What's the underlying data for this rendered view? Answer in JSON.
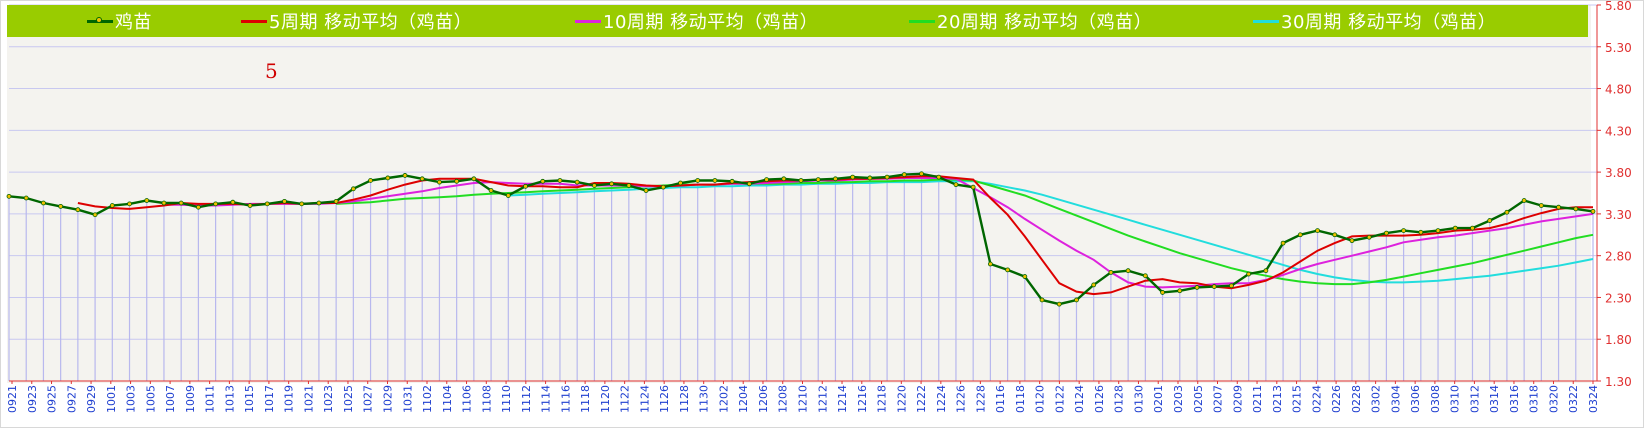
{
  "chart_data": {
    "type": "line",
    "title": "",
    "colors": {
      "price": "#006600",
      "price_marker": "#f0c000",
      "ma5": "#dd0000",
      "ma10": "#dd22dd",
      "ma20": "#22dd22",
      "ma30": "#22dddd",
      "grid": "#c8c8f0",
      "volume_bar": "#b8b8ee",
      "y_tick_text": "#e03030",
      "x_tick_text": "#2040d0",
      "legend_bg": "#99cc00"
    },
    "ylim": [
      1.3,
      5.8
    ],
    "y_ticks": [
      "1.30",
      "1.80",
      "2.30",
      "2.80",
      "3.30",
      "3.80",
      "4.30",
      "4.80",
      "5.30",
      "5.80"
    ],
    "x_ticks": [
      "0921",
      "0923",
      "0925",
      "0927",
      "0929",
      "1001",
      "1003",
      "1005",
      "1007",
      "1009",
      "1011",
      "1013",
      "1015",
      "1017",
      "1019",
      "1021",
      "1023",
      "1025",
      "1027",
      "1029",
      "1031",
      "1102",
      "1104",
      "1106",
      "1108",
      "1110",
      "1112",
      "1114",
      "1116",
      "1118",
      "1120",
      "1122",
      "1124",
      "1126",
      "1128",
      "1130",
      "1202",
      "1204",
      "1206",
      "1208",
      "1210",
      "1212",
      "1214",
      "1216",
      "1218",
      "1220",
      "1222",
      "1224",
      "1226",
      "1228",
      "0116",
      "0118",
      "0120",
      "0122",
      "0124",
      "0126",
      "0128",
      "0130",
      "0201",
      "0203",
      "0205",
      "0207",
      "0209",
      "0211",
      "0213",
      "0215",
      "0224",
      "0226",
      "0228",
      "0302",
      "0304",
      "0306",
      "0308",
      "0310",
      "0312",
      "0314",
      "0316",
      "0318",
      "0320",
      "0322",
      "0324"
    ],
    "period_label": "5",
    "series": [
      {
        "name": "鸡苗",
        "key": "price",
        "values": [
          3.51,
          3.49,
          3.43,
          3.39,
          3.35,
          3.29,
          3.4,
          3.42,
          3.46,
          3.43,
          3.43,
          3.38,
          3.42,
          3.44,
          3.4,
          3.42,
          3.45,
          3.42,
          3.43,
          3.45,
          3.6,
          3.7,
          3.73,
          3.76,
          3.72,
          3.68,
          3.69,
          3.72,
          3.58,
          3.52,
          3.63,
          3.69,
          3.7,
          3.68,
          3.64,
          3.66,
          3.64,
          3.58,
          3.62,
          3.67,
          3.7,
          3.7,
          3.69,
          3.66,
          3.71,
          3.72,
          3.7,
          3.71,
          3.72,
          3.74,
          3.73,
          3.74,
          3.77,
          3.78,
          3.74,
          3.65,
          3.62,
          2.7,
          2.63,
          2.55,
          2.27,
          2.22,
          2.27,
          2.45,
          2.6,
          2.62,
          2.56,
          2.36,
          2.38,
          2.42,
          2.43,
          2.44,
          2.58,
          2.62,
          2.95,
          3.05,
          3.1,
          3.05,
          2.98,
          3.02,
          3.07,
          3.1,
          3.08,
          3.1,
          3.13,
          3.13,
          3.22,
          3.32,
          3.46,
          3.4,
          3.38,
          3.36,
          3.33
        ]
      },
      {
        "name": "5周期 移动平均（鸡苗）",
        "key": "ma5",
        "values": [
          null,
          null,
          null,
          null,
          3.43,
          3.39,
          3.37,
          3.36,
          3.38,
          3.4,
          3.43,
          3.42,
          3.42,
          3.42,
          3.41,
          3.42,
          3.43,
          3.42,
          3.43,
          3.43,
          3.47,
          3.52,
          3.59,
          3.65,
          3.7,
          3.72,
          3.72,
          3.72,
          3.68,
          3.64,
          3.63,
          3.63,
          3.62,
          3.62,
          3.67,
          3.67,
          3.66,
          3.64,
          3.63,
          3.64,
          3.65,
          3.65,
          3.67,
          3.68,
          3.69,
          3.7,
          3.7,
          3.71,
          3.71,
          3.72,
          3.72,
          3.73,
          3.74,
          3.75,
          3.75,
          3.73,
          3.71,
          3.49,
          3.29,
          3.03,
          2.75,
          2.47,
          2.37,
          2.34,
          2.36,
          2.43,
          2.5,
          2.52,
          2.48,
          2.47,
          2.43,
          2.41,
          2.45,
          2.5,
          2.6,
          2.73,
          2.86,
          2.95,
          3.03,
          3.04,
          3.04,
          3.04,
          3.05,
          3.07,
          3.1,
          3.11,
          3.13,
          3.18,
          3.25,
          3.31,
          3.36,
          3.38,
          3.38
        ]
      },
      {
        "name": "10周期 移动平均（鸡苗）",
        "key": "ma10",
        "values": [
          null,
          null,
          null,
          null,
          null,
          null,
          null,
          null,
          null,
          3.41,
          3.41,
          3.4,
          3.4,
          3.41,
          3.42,
          3.42,
          3.42,
          3.42,
          3.42,
          3.43,
          3.45,
          3.48,
          3.51,
          3.54,
          3.57,
          3.61,
          3.64,
          3.67,
          3.68,
          3.67,
          3.66,
          3.66,
          3.66,
          3.64,
          3.64,
          3.64,
          3.64,
          3.63,
          3.63,
          3.64,
          3.65,
          3.65,
          3.66,
          3.66,
          3.67,
          3.68,
          3.69,
          3.7,
          3.7,
          3.71,
          3.72,
          3.72,
          3.73,
          3.73,
          3.73,
          3.72,
          3.61,
          3.5,
          3.38,
          3.24,
          3.11,
          2.98,
          2.86,
          2.75,
          2.6,
          2.48,
          2.43,
          2.42,
          2.43,
          2.44,
          2.46,
          2.47,
          2.47,
          2.51,
          2.57,
          2.64,
          2.7,
          2.75,
          2.8,
          2.85,
          2.9,
          2.96,
          2.99,
          3.02,
          3.04,
          3.07,
          3.1,
          3.13,
          3.17,
          3.21,
          3.24,
          3.27,
          3.3
        ]
      },
      {
        "name": "20周期 移动平均（鸡苗）",
        "key": "ma20",
        "values": [
          null,
          null,
          null,
          null,
          null,
          null,
          null,
          null,
          null,
          null,
          null,
          null,
          null,
          null,
          null,
          null,
          null,
          null,
          null,
          3.42,
          3.43,
          3.44,
          3.46,
          3.48,
          3.49,
          3.5,
          3.51,
          3.53,
          3.54,
          3.55,
          3.56,
          3.57,
          3.58,
          3.59,
          3.6,
          3.61,
          3.62,
          3.63,
          3.64,
          3.65,
          3.65,
          3.65,
          3.66,
          3.66,
          3.66,
          3.66,
          3.67,
          3.67,
          3.68,
          3.68,
          3.69,
          3.69,
          3.7,
          3.7,
          3.71,
          3.71,
          3.7,
          3.64,
          3.58,
          3.52,
          3.44,
          3.36,
          3.28,
          3.2,
          3.12,
          3.04,
          2.97,
          2.9,
          2.83,
          2.77,
          2.71,
          2.65,
          2.6,
          2.56,
          2.52,
          2.49,
          2.47,
          2.46,
          2.46,
          2.48,
          2.51,
          2.55,
          2.59,
          2.63,
          2.67,
          2.71,
          2.76,
          2.81,
          2.86,
          2.91,
          2.96,
          3.01,
          3.05
        ]
      },
      {
        "name": "30周期 移动平均（鸡苗）",
        "key": "ma30",
        "values": [
          null,
          null,
          null,
          null,
          null,
          null,
          null,
          null,
          null,
          null,
          null,
          null,
          null,
          null,
          null,
          null,
          null,
          null,
          null,
          null,
          null,
          null,
          null,
          null,
          null,
          null,
          null,
          null,
          null,
          3.52,
          3.53,
          3.54,
          3.55,
          3.56,
          3.57,
          3.58,
          3.59,
          3.6,
          3.61,
          3.62,
          3.62,
          3.63,
          3.63,
          3.64,
          3.64,
          3.65,
          3.65,
          3.66,
          3.66,
          3.67,
          3.67,
          3.68,
          3.68,
          3.68,
          3.69,
          3.69,
          3.69,
          3.66,
          3.62,
          3.58,
          3.53,
          3.47,
          3.41,
          3.35,
          3.29,
          3.23,
          3.17,
          3.11,
          3.05,
          2.99,
          2.93,
          2.87,
          2.81,
          2.75,
          2.69,
          2.63,
          2.58,
          2.54,
          2.51,
          2.49,
          2.48,
          2.48,
          2.49,
          2.5,
          2.52,
          2.54,
          2.56,
          2.59,
          2.62,
          2.65,
          2.68,
          2.72,
          2.76
        ]
      }
    ]
  }
}
